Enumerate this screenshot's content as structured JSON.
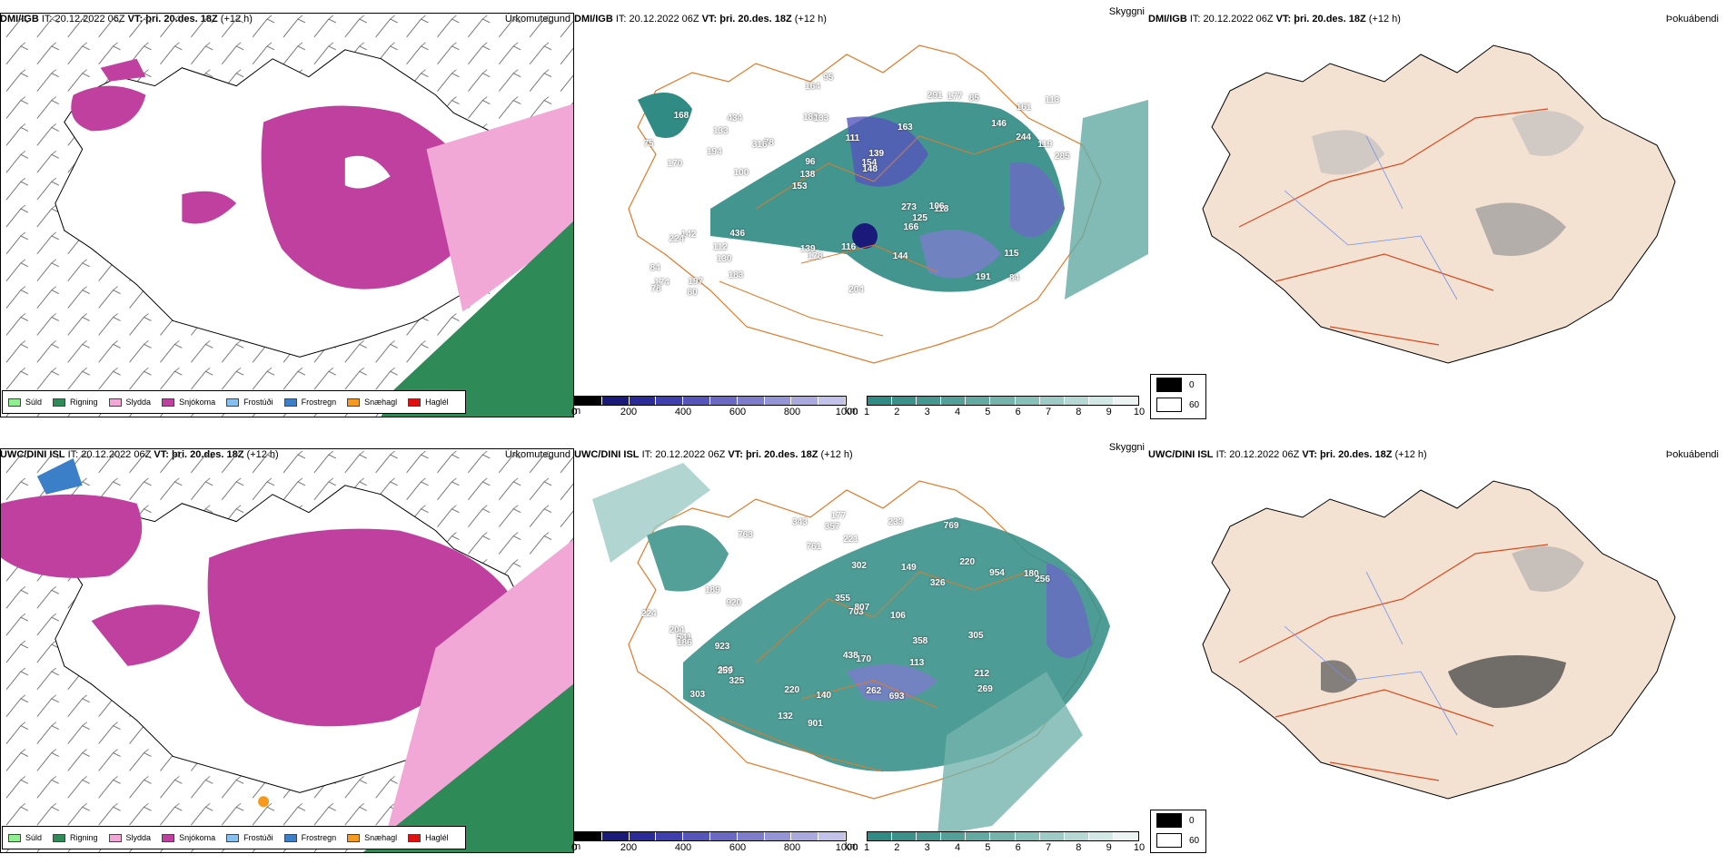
{
  "rows": [
    {
      "model": "DMI/IGB",
      "it_label": "IT:",
      "it_value": "20.12.2022 06Z",
      "vt_label": "VT:",
      "vt_value": "þri. 20.des. 18Z",
      "lead": "(+12 h)",
      "titles": [
        "Úrkomutegund",
        "Skyggni",
        "Þokuábendi"
      ],
      "labels": [
        "84",
        "170",
        "161",
        "153",
        "163",
        "197",
        "182",
        "111",
        "142",
        "78",
        "84",
        "130",
        "133",
        "139",
        "118",
        "168",
        "164",
        "285",
        "273",
        "244",
        "138",
        "139",
        "96",
        "434",
        "291",
        "436",
        "191",
        "115",
        "106",
        "204",
        "316",
        "194",
        "166",
        "183",
        "119",
        "154",
        "174",
        "178",
        "148",
        "224",
        "146",
        "113",
        "125",
        "144",
        "112",
        "80",
        "78",
        "116",
        "85",
        "95",
        "100",
        "75",
        "133",
        "177"
      ]
    },
    {
      "model": "UWC/DINI ISL",
      "it_label": "IT:",
      "it_value": "20.12.2022 06Z",
      "vt_label": "VT:",
      "vt_value": "þri. 20.des. 18Z",
      "lead": "(+12 h)",
      "titles": [
        "Úrkomutegund",
        "Skyggni",
        "Þokuábendi"
      ],
      "labels": [
        "303",
        "769",
        "763",
        "220",
        "170",
        "920",
        "923",
        "936",
        "954",
        "326",
        "204",
        "177",
        "113",
        "703",
        "901",
        "343",
        "269",
        "224",
        "259",
        "132",
        "693",
        "357",
        "761",
        "807",
        "355",
        "220",
        "541",
        "233",
        "302",
        "358",
        "189",
        "325",
        "262",
        "438",
        "212",
        "186",
        "180",
        "106",
        "149",
        "305",
        "256",
        "221",
        "140"
      ]
    }
  ],
  "precip_legend": [
    {
      "label": "Súld",
      "color": "#90ee90"
    },
    {
      "label": "Rigning",
      "color": "#2e8b57"
    },
    {
      "label": "Slydda",
      "color": "#f2a8d6"
    },
    {
      "label": "Snjókoma",
      "color": "#c040a0"
    },
    {
      "label": "Frostúði",
      "color": "#87bfef"
    },
    {
      "label": "Frostregn",
      "color": "#3a7fc8"
    },
    {
      "label": "Snæhagl",
      "color": "#f59a1c"
    },
    {
      "label": "Haglél",
      "color": "#e01010"
    }
  ],
  "vis_m": {
    "unit": "m",
    "ticks": [
      "0",
      "200",
      "400",
      "600",
      "800",
      "1000"
    ],
    "colors": [
      "#000000",
      "#1a1a7a",
      "#2b2b9a",
      "#3f3fb0",
      "#5555bb",
      "#6a6ac4",
      "#7d7dcc",
      "#9494d6",
      "#aaaadf",
      "#c2c2ea"
    ]
  },
  "vis_km": {
    "unit": "km",
    "ticks": [
      "1",
      "2",
      "3",
      "4",
      "5",
      "6",
      "7",
      "8",
      "9",
      "10"
    ],
    "colors": [
      "#2f8b83",
      "#3a918a",
      "#459890",
      "#52a097",
      "#63aaa2",
      "#74b4ad",
      "#88c0ba",
      "#9ecbc6",
      "#b6d9d5",
      "#d2e8e5",
      "#ecf5f4"
    ]
  },
  "fog_legend": [
    {
      "label": "0",
      "color": "#000000"
    },
    {
      "label": "60",
      "color": "#ffffff"
    }
  ]
}
